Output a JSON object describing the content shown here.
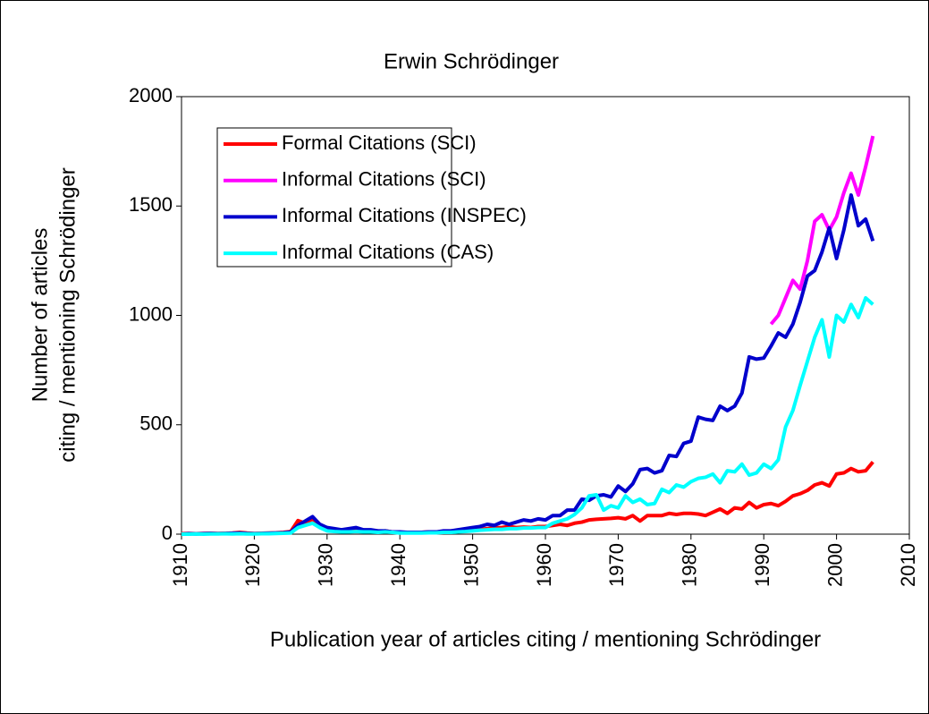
{
  "chart_data": {
    "type": "line",
    "title": "Erwin Schrödinger",
    "xlabel": "Publication year of articles citing / mentioning Schrödinger",
    "ylabel": [
      "Number of articles",
      "citing / mentioning Schrödinger"
    ],
    "xlim": [
      1910,
      2010
    ],
    "xticks": [
      1910,
      1920,
      1930,
      1940,
      1950,
      1960,
      1970,
      1980,
      1990,
      2000,
      2010
    ],
    "ylim": [
      0,
      2000
    ],
    "yticks": [
      0,
      500,
      1000,
      1500,
      2000
    ],
    "legend": "upper left",
    "x": [
      1910,
      1911,
      1912,
      1913,
      1914,
      1915,
      1916,
      1917,
      1918,
      1919,
      1920,
      1921,
      1922,
      1923,
      1924,
      1925,
      1926,
      1927,
      1928,
      1929,
      1930,
      1931,
      1932,
      1933,
      1934,
      1935,
      1936,
      1937,
      1938,
      1939,
      1940,
      1941,
      1942,
      1943,
      1944,
      1945,
      1946,
      1947,
      1948,
      1949,
      1950,
      1951,
      1952,
      1953,
      1954,
      1955,
      1956,
      1957,
      1958,
      1959,
      1960,
      1961,
      1962,
      1963,
      1964,
      1965,
      1966,
      1967,
      1968,
      1969,
      1970,
      1971,
      1972,
      1973,
      1974,
      1975,
      1976,
      1977,
      1978,
      1979,
      1980,
      1981,
      1982,
      1983,
      1984,
      1985,
      1986,
      1987,
      1988,
      1989,
      1990,
      1991,
      1992,
      1993,
      1994,
      1995,
      1996,
      1997,
      1998,
      1999,
      2000,
      2001,
      2002,
      2003,
      2004,
      2005
    ],
    "series": [
      {
        "name": "Formal Citations (SCI)",
        "color": "#ff0000",
        "values": [
          2,
          3,
          2,
          3,
          4,
          3,
          4,
          5,
          8,
          5,
          3,
          4,
          5,
          6,
          8,
          12,
          62,
          50,
          70,
          35,
          20,
          15,
          12,
          14,
          15,
          12,
          12,
          10,
          15,
          10,
          8,
          6,
          6,
          8,
          10,
          8,
          10,
          12,
          15,
          18,
          20,
          22,
          25,
          28,
          30,
          35,
          30,
          32,
          30,
          35,
          35,
          40,
          45,
          40,
          50,
          55,
          65,
          68,
          70,
          72,
          75,
          70,
          85,
          60,
          85,
          85,
          85,
          95,
          90,
          95,
          95,
          92,
          85,
          100,
          115,
          95,
          120,
          115,
          145,
          120,
          135,
          140,
          130,
          150,
          175,
          185,
          200,
          225,
          235,
          220,
          275,
          280,
          300,
          285,
          290,
          330
        ]
      },
      {
        "name": "Informal Citations (SCI)",
        "color": "#ff00ff",
        "values": [
          null,
          null,
          null,
          null,
          null,
          null,
          null,
          null,
          null,
          null,
          null,
          null,
          null,
          null,
          null,
          null,
          null,
          null,
          null,
          null,
          null,
          null,
          null,
          null,
          null,
          null,
          null,
          null,
          null,
          null,
          null,
          null,
          null,
          null,
          null,
          null,
          null,
          null,
          null,
          null,
          null,
          null,
          null,
          null,
          null,
          null,
          null,
          null,
          null,
          null,
          null,
          null,
          null,
          null,
          null,
          null,
          null,
          null,
          null,
          null,
          null,
          null,
          null,
          null,
          null,
          null,
          null,
          null,
          null,
          null,
          null,
          null,
          null,
          null,
          null,
          null,
          null,
          null,
          null,
          null,
          null,
          960,
          1000,
          1080,
          1160,
          1120,
          1250,
          1430,
          1460,
          1390,
          1450,
          1560,
          1650,
          1550,
          1680,
          1820
        ]
      },
      {
        "name": "Informal Citations (INSPEC)",
        "color": "#0000cc",
        "values": [
          0,
          2,
          1,
          2,
          3,
          2,
          3,
          4,
          5,
          3,
          2,
          3,
          4,
          5,
          6,
          10,
          40,
          60,
          80,
          45,
          30,
          25,
          20,
          25,
          30,
          20,
          20,
          15,
          15,
          10,
          10,
          8,
          8,
          8,
          10,
          10,
          15,
          15,
          20,
          25,
          30,
          35,
          45,
          40,
          55,
          45,
          55,
          65,
          60,
          70,
          65,
          85,
          85,
          110,
          110,
          160,
          155,
          175,
          180,
          170,
          220,
          195,
          230,
          295,
          300,
          280,
          290,
          360,
          355,
          415,
          425,
          535,
          525,
          520,
          585,
          565,
          585,
          645,
          810,
          800,
          805,
          860,
          920,
          900,
          960,
          1060,
          1180,
          1205,
          1290,
          1400,
          1260,
          1390,
          1550,
          1410,
          1440,
          1340
        ]
      },
      {
        "name": "Informal Citations (CAS)",
        "color": "#00ffff",
        "values": [
          0,
          0,
          1,
          0,
          1,
          1,
          2,
          1,
          2,
          1,
          1,
          2,
          2,
          3,
          4,
          5,
          30,
          40,
          50,
          30,
          15,
          12,
          10,
          10,
          12,
          10,
          10,
          8,
          10,
          8,
          5,
          5,
          5,
          5,
          6,
          6,
          8,
          8,
          10,
          12,
          15,
          18,
          20,
          22,
          22,
          25,
          25,
          28,
          28,
          30,
          30,
          50,
          60,
          70,
          90,
          120,
          175,
          180,
          110,
          130,
          120,
          175,
          145,
          160,
          135,
          140,
          205,
          190,
          225,
          215,
          240,
          255,
          260,
          275,
          235,
          290,
          285,
          320,
          270,
          280,
          320,
          300,
          340,
          490,
          565,
          680,
          790,
          900,
          980,
          810,
          1000,
          970,
          1050,
          990,
          1080,
          1050
        ]
      }
    ]
  }
}
